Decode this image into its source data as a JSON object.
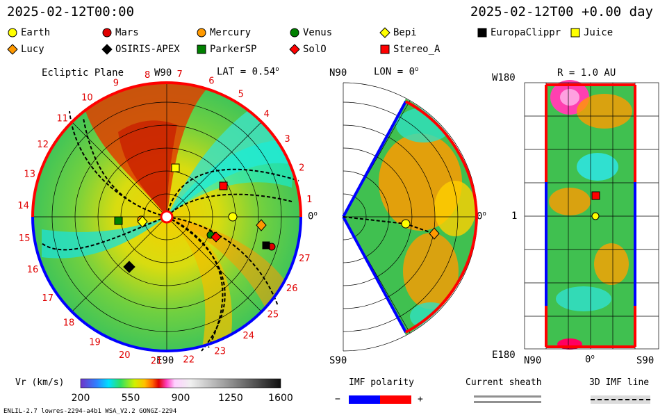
{
  "header": {
    "left_time": "2025-02-12T00:00",
    "right_time": "2025-02-12T00 +0.00 day"
  },
  "bodies_legend": [
    {
      "name": "Earth",
      "marker": "circle",
      "color": "#ffff00"
    },
    {
      "name": "Mars",
      "marker": "circle",
      "color": "#e00000"
    },
    {
      "name": "Mercury",
      "marker": "circle",
      "color": "#ff9900"
    },
    {
      "name": "Venus",
      "marker": "circle",
      "color": "#008000"
    },
    {
      "name": "Bepi",
      "marker": "diamond",
      "color": "#ffff00"
    },
    {
      "name": "EuropaClippr",
      "marker": "square",
      "color": "#000000"
    },
    {
      "name": "Juice",
      "marker": "square",
      "color": "#ffff00"
    },
    {
      "name": "Lucy",
      "marker": "diamond",
      "color": "#ff9900"
    },
    {
      "name": "OSIRIS-APEX",
      "marker": "diamond",
      "color": "#000000"
    },
    {
      "name": "ParkerSP",
      "marker": "square",
      "color": "#008000"
    },
    {
      "name": "SolO",
      "marker": "diamond",
      "color": "#ff0000"
    },
    {
      "name": "Stereo_A",
      "marker": "square",
      "color": "#ff0000"
    }
  ],
  "ecliptic": {
    "title": "Ecliptic Plane",
    "top_label": "W90",
    "bottom_label": "E90",
    "right_label": "0",
    "lat_label": "LAT = 0.54",
    "sector_numbers": [
      "1",
      "2",
      "3",
      "4",
      "5",
      "6",
      "7",
      "8",
      "9",
      "10",
      "11",
      "12",
      "13",
      "14",
      "15",
      "16",
      "17",
      "18",
      "19",
      "20",
      "21",
      "22",
      "23",
      "24",
      "25",
      "26",
      "27"
    ]
  },
  "meridional": {
    "top_label": "N90",
    "bottom_label": "S90",
    "right_label": "0",
    "lon_label": "LON = 0"
  },
  "radial": {
    "title": "R = 1.0 AU",
    "top_left": "W180",
    "mid_left": "1",
    "bottom_left": "E180",
    "bottom_labels": [
      "N90",
      "0",
      "S90"
    ]
  },
  "colorbar": {
    "label": "Vr (km/s)",
    "ticks": [
      "200",
      "550",
      "900",
      "1250",
      "1600"
    ],
    "range": [
      200,
      1600
    ]
  },
  "legends": {
    "imf_polarity": "IMF polarity",
    "imf_minus": "−",
    "imf_plus": "+",
    "current_sheath": "Current sheath",
    "imf_line": "3D IMF line"
  },
  "footer": {
    "left": "ENLIL-2.7 lowres-2294-a4b1 WSA_V2.2 GONGZ-2294"
  },
  "colors": {
    "polarity_negative": "#0000ff",
    "polarity_positive": "#ff0000"
  }
}
